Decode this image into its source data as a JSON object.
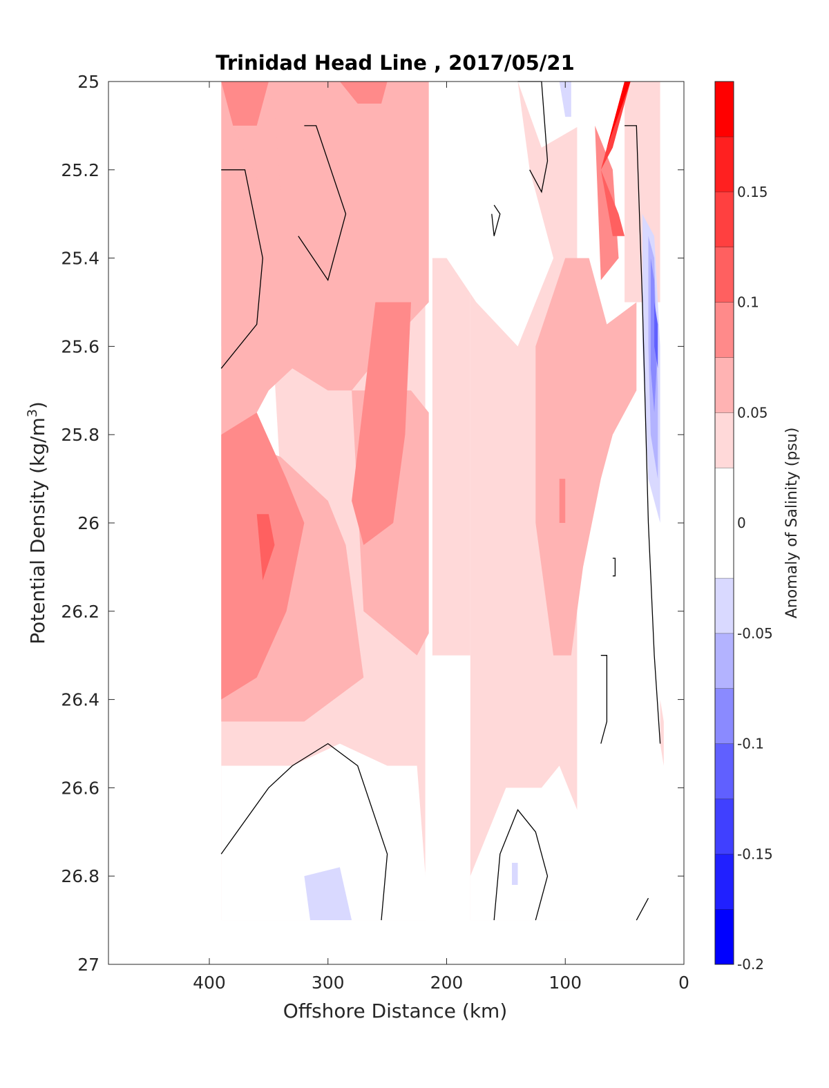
{
  "chart_data": {
    "type": "heatmap",
    "title": "Trinidad Head Line , 2017/05/21",
    "xlabel": "Offshore Distance (km)",
    "ylabel_main": "Potential Density (kg/m",
    "ylabel_sup": "3",
    "ylabel_close": ")",
    "xlim": [
      485,
      0
    ],
    "ylim": [
      25,
      27
    ],
    "y_reversed": true,
    "x_ticks": [
      400,
      300,
      200,
      100,
      0
    ],
    "x_tick_labels": [
      "400",
      "300",
      "200",
      "100",
      "0"
    ],
    "y_ticks": [
      25,
      25.2,
      25.4,
      25.6,
      25.8,
      26,
      26.2,
      26.4,
      26.6,
      26.8,
      27
    ],
    "y_tick_labels": [
      "25",
      "25.2",
      "25.4",
      "25.6",
      "25.8",
      "26",
      "26.2",
      "26.4",
      "26.6",
      "26.8",
      "27"
    ],
    "colorbar": {
      "label": "Anomaly of Salinity (psu)",
      "range": [
        -0.2,
        0.2
      ],
      "levels": [
        {
          "lo": -0.2,
          "hi": -0.175,
          "color": "#0000ff"
        },
        {
          "lo": -0.175,
          "hi": -0.15,
          "color": "#2020ff"
        },
        {
          "lo": -0.15,
          "hi": -0.125,
          "color": "#4040ff"
        },
        {
          "lo": -0.125,
          "hi": -0.1,
          "color": "#6060ff"
        },
        {
          "lo": -0.1,
          "hi": -0.075,
          "color": "#8a8aff"
        },
        {
          "lo": -0.075,
          "hi": -0.05,
          "color": "#b3b3ff"
        },
        {
          "lo": -0.05,
          "hi": -0.025,
          "color": "#d9d9ff"
        },
        {
          "lo": -0.025,
          "hi": 0.025,
          "color": "#ffffff"
        },
        {
          "lo": 0.025,
          "hi": 0.05,
          "color": "#ffd9d9"
        },
        {
          "lo": 0.05,
          "hi": 0.075,
          "color": "#ffb3b3"
        },
        {
          "lo": 0.075,
          "hi": 0.1,
          "color": "#ff8a8a"
        },
        {
          "lo": 0.1,
          "hi": 0.125,
          "color": "#ff6060"
        },
        {
          "lo": 0.125,
          "hi": 0.15,
          "color": "#ff4040"
        },
        {
          "lo": 0.15,
          "hi": 0.175,
          "color": "#ff2020"
        },
        {
          "lo": 0.175,
          "hi": 0.2,
          "color": "#ff0000"
        }
      ],
      "ticks": [
        -0.2,
        -0.15,
        -0.1,
        -0.05,
        0,
        0.05,
        0.1,
        0.15
      ],
      "tick_labels": [
        "-0.2",
        "-0.15",
        "-0.1",
        "-0.05",
        "0",
        "0.05",
        "0.1",
        "0.15"
      ]
    },
    "data_extent_x": [
      0,
      390
    ],
    "data_extent_y": [
      25,
      26.9
    ],
    "regions": [
      {
        "level": 0.0375,
        "points": [
          [
            390,
            25
          ],
          [
            218,
            25
          ],
          [
            218,
            26.9
          ],
          [
            390,
            26.9
          ]
        ]
      },
      {
        "level": 0.0375,
        "points": [
          [
            180,
            25
          ],
          [
            90,
            25
          ],
          [
            90,
            26.9
          ],
          [
            180,
            26.9
          ]
        ]
      },
      {
        "level": 0.0375,
        "points": [
          [
            50,
            25
          ],
          [
            20,
            25
          ],
          [
            20,
            25.5
          ],
          [
            50,
            25.5
          ]
        ]
      },
      {
        "level": 0.0375,
        "points": [
          [
            212,
            25.4
          ],
          [
            180,
            25.4
          ],
          [
            180,
            26.3
          ],
          [
            212,
            26.3
          ]
        ]
      },
      {
        "level": 0,
        "points": [
          [
            390,
            25.25
          ],
          [
            355,
            25.2
          ],
          [
            340,
            25.9
          ],
          [
            390,
            26.1
          ]
        ]
      },
      {
        "level": 0,
        "points": [
          [
            325,
            25.05
          ],
          [
            300,
            25.05
          ],
          [
            280,
            25.3
          ],
          [
            290,
            25.53
          ],
          [
            320,
            25.45
          ],
          [
            335,
            25.25
          ]
        ]
      },
      {
        "level": 0,
        "points": [
          [
            200,
            25
          ],
          [
            140,
            25
          ],
          [
            130,
            25.2
          ],
          [
            110,
            25.4
          ],
          [
            125,
            25.5
          ],
          [
            140,
            25.6
          ],
          [
            175,
            25.5
          ],
          [
            200,
            25.4
          ]
        ]
      },
      {
        "level": 0,
        "points": [
          [
            140,
            25
          ],
          [
            90,
            25
          ],
          [
            88,
            25.1
          ],
          [
            120,
            25.15
          ]
        ]
      },
      {
        "level": 0,
        "points": [
          [
            390,
            26.55
          ],
          [
            330,
            26.55
          ],
          [
            290,
            26.5
          ],
          [
            250,
            26.55
          ],
          [
            225,
            26.55
          ],
          [
            215,
            26.9
          ],
          [
            390,
            26.9
          ]
        ]
      },
      {
        "level": 0,
        "points": [
          [
            180,
            26.8
          ],
          [
            150,
            26.6
          ],
          [
            120,
            26.6
          ],
          [
            105,
            26.55
          ],
          [
            90,
            26.65
          ],
          [
            75,
            26.9
          ],
          [
            180,
            26.9
          ]
        ]
      },
      {
        "level": 0,
        "points": [
          [
            90,
            26.9
          ],
          [
            70,
            26.3
          ],
          [
            60,
            26.0
          ],
          [
            50,
            25.9
          ],
          [
            40,
            26.2
          ],
          [
            30,
            26.4
          ],
          [
            20,
            26.6
          ],
          [
            20,
            26.9
          ]
        ]
      },
      {
        "level": -0.0375,
        "points": [
          [
            390,
            25.27
          ],
          [
            375,
            25.25
          ],
          [
            370,
            25.4
          ],
          [
            375,
            25.55
          ],
          [
            390,
            25.6
          ]
        ]
      },
      {
        "level": -0.0375,
        "points": [
          [
            320,
            25.18
          ],
          [
            313,
            25.18
          ],
          [
            310,
            25.32
          ],
          [
            315,
            25.32
          ]
        ]
      },
      {
        "level": -0.0375,
        "points": [
          [
            105,
            25
          ],
          [
            95,
            25
          ],
          [
            95,
            25.08
          ],
          [
            100,
            25.08
          ]
        ]
      },
      {
        "level": -0.0375,
        "points": [
          [
            320,
            26.8
          ],
          [
            290,
            26.78
          ],
          [
            280,
            26.9
          ],
          [
            315,
            26.9
          ]
        ]
      },
      {
        "level": -0.0375,
        "points": [
          [
            145,
            26.77
          ],
          [
            140,
            26.77
          ],
          [
            140,
            26.82
          ],
          [
            145,
            26.82
          ]
        ]
      },
      {
        "level": 0.0625,
        "points": [
          [
            390,
            25
          ],
          [
            215,
            25
          ],
          [
            215,
            25.5
          ],
          [
            250,
            25.6
          ],
          [
            280,
            25.7
          ],
          [
            300,
            25.7
          ],
          [
            330,
            25.65
          ],
          [
            350,
            25.7
          ],
          [
            370,
            25.8
          ],
          [
            390,
            25.8
          ]
        ]
      },
      {
        "level": 0.0625,
        "points": [
          [
            390,
            25.8
          ],
          [
            340,
            25.85
          ],
          [
            300,
            25.95
          ],
          [
            285,
            26.05
          ],
          [
            270,
            26.35
          ],
          [
            320,
            26.45
          ],
          [
            350,
            26.45
          ],
          [
            390,
            26.45
          ]
        ]
      },
      {
        "level": 0.0625,
        "points": [
          [
            280,
            25.7
          ],
          [
            230,
            25.7
          ],
          [
            215,
            25.75
          ],
          [
            215,
            26.25
          ],
          [
            225,
            26.3
          ],
          [
            270,
            26.2
          ]
        ]
      },
      {
        "level": 0.0625,
        "points": [
          [
            125,
            25.6
          ],
          [
            100,
            25.4
          ],
          [
            80,
            25.4
          ],
          [
            65,
            25.55
          ],
          [
            40,
            25.5
          ],
          [
            40,
            25.7
          ],
          [
            60,
            25.8
          ],
          [
            70,
            25.9
          ],
          [
            85,
            26.1
          ],
          [
            95,
            26.3
          ],
          [
            110,
            26.3
          ],
          [
            125,
            26.0
          ]
        ]
      },
      {
        "level": 0.0625,
        "points": [
          [
            380,
            25.1
          ],
          [
            360,
            25.0
          ],
          [
            345,
            25.05
          ],
          [
            340,
            25.25
          ],
          [
            355,
            25.25
          ]
        ]
      },
      {
        "level": 0.0875,
        "points": [
          [
            390,
            25.8
          ],
          [
            360,
            25.75
          ],
          [
            335,
            25.9
          ],
          [
            320,
            26.0
          ],
          [
            335,
            26.2
          ],
          [
            360,
            26.35
          ],
          [
            390,
            26.4
          ]
        ]
      },
      {
        "level": 0.0875,
        "points": [
          [
            260,
            25.5
          ],
          [
            230,
            25.5
          ],
          [
            235,
            25.8
          ],
          [
            245,
            26.0
          ],
          [
            270,
            26.05
          ],
          [
            280,
            25.95
          ]
        ]
      },
      {
        "level": 0.0875,
        "points": [
          [
            390,
            25
          ],
          [
            350,
            25
          ],
          [
            360,
            25.1
          ],
          [
            380,
            25.1
          ]
        ]
      },
      {
        "level": 0.0875,
        "points": [
          [
            290,
            25
          ],
          [
            250,
            25
          ],
          [
            255,
            25.05
          ],
          [
            275,
            25.05
          ]
        ]
      },
      {
        "level": 0.0875,
        "points": [
          [
            75,
            25.1
          ],
          [
            60,
            25.2
          ],
          [
            55,
            25.4
          ],
          [
            70,
            25.45
          ]
        ]
      },
      {
        "level": 0.0875,
        "points": [
          [
            105,
            25.9
          ],
          [
            100,
            25.9
          ],
          [
            100,
            26.0
          ],
          [
            105,
            26.0
          ]
        ]
      },
      {
        "level": 0.1125,
        "points": [
          [
            360,
            25.98
          ],
          [
            350,
            25.98
          ],
          [
            345,
            26.05
          ],
          [
            355,
            26.13
          ]
        ]
      },
      {
        "level": 0.1125,
        "points": [
          [
            70,
            25.2
          ],
          [
            55,
            25.3
          ],
          [
            50,
            25.35
          ],
          [
            60,
            25.35
          ]
        ]
      },
      {
        "level": 0.1375,
        "points": [
          [
            70,
            25.2
          ],
          [
            50,
            25.0
          ],
          [
            45,
            25.0
          ],
          [
            60,
            25.15
          ]
        ]
      },
      {
        "level": 0.1625,
        "points": [
          [
            70,
            25.2
          ],
          [
            50,
            25.0
          ],
          [
            47,
            25.0
          ],
          [
            62,
            25.12
          ]
        ]
      },
      {
        "level": 0.1875,
        "points": [
          [
            65,
            25.15
          ],
          [
            50,
            25.0
          ],
          [
            45,
            25.0
          ]
        ]
      },
      {
        "level": -0.0375,
        "points": [
          [
            35,
            25.3
          ],
          [
            25,
            25.35
          ],
          [
            20,
            25.6
          ],
          [
            20,
            26.0
          ],
          [
            30,
            25.9
          ],
          [
            35,
            25.6
          ]
        ]
      },
      {
        "level": -0.0625,
        "points": [
          [
            30,
            25.35
          ],
          [
            25,
            25.4
          ],
          [
            22,
            25.7
          ],
          [
            22,
            25.9
          ],
          [
            28,
            25.8
          ],
          [
            30,
            25.6
          ]
        ]
      },
      {
        "level": -0.0875,
        "points": [
          [
            28,
            25.4
          ],
          [
            25,
            25.45
          ],
          [
            23,
            25.65
          ],
          [
            25,
            25.75
          ],
          [
            28,
            25.65
          ]
        ]
      },
      {
        "level": -0.1125,
        "points": [
          [
            25,
            25.5
          ],
          [
            22,
            25.55
          ],
          [
            22,
            25.65
          ],
          [
            25,
            25.6
          ]
        ]
      },
      {
        "level": 0.0375,
        "points": [
          [
            20,
            26.4
          ],
          [
            17,
            26.45
          ],
          [
            17,
            26.55
          ],
          [
            20,
            26.5
          ]
        ]
      }
    ],
    "contours": [
      [
        [
          390,
          25.2
        ],
        [
          370,
          25.2
        ],
        [
          355,
          25.4
        ],
        [
          360,
          25.55
        ],
        [
          390,
          25.65
        ]
      ],
      [
        [
          320,
          25.1
        ],
        [
          310,
          25.1
        ],
        [
          285,
          25.3
        ],
        [
          300,
          25.45
        ],
        [
          325,
          25.35
        ]
      ],
      [
        [
          140,
          25
        ],
        [
          120,
          25
        ],
        [
          115,
          25.18
        ],
        [
          120,
          25.25
        ],
        [
          130,
          25.2
        ]
      ],
      [
        [
          160,
          25.28
        ],
        [
          155,
          25.3
        ],
        [
          160,
          25.35
        ],
        [
          162,
          25.3
        ]
      ],
      [
        [
          50,
          25.1
        ],
        [
          40,
          25.1
        ],
        [
          35,
          25.5
        ],
        [
          30,
          26.0
        ],
        [
          25,
          26.3
        ],
        [
          20,
          26.5
        ]
      ],
      [
        [
          60,
          26.08
        ],
        [
          58,
          26.08
        ],
        [
          58,
          26.12
        ],
        [
          60,
          26.12
        ]
      ],
      [
        [
          70,
          26.3
        ],
        [
          65,
          26.3
        ],
        [
          65,
          26.45
        ],
        [
          70,
          26.5
        ]
      ],
      [
        [
          390,
          26.75
        ],
        [
          350,
          26.6
        ],
        [
          330,
          26.55
        ],
        [
          300,
          26.5
        ],
        [
          275,
          26.55
        ],
        [
          250,
          26.75
        ],
        [
          255,
          26.9
        ]
      ],
      [
        [
          160,
          26.9
        ],
        [
          155,
          26.75
        ],
        [
          140,
          26.65
        ],
        [
          125,
          26.7
        ],
        [
          115,
          26.8
        ],
        [
          125,
          26.9
        ]
      ],
      [
        [
          40,
          26.9
        ],
        [
          30,
          26.85
        ]
      ]
    ]
  }
}
